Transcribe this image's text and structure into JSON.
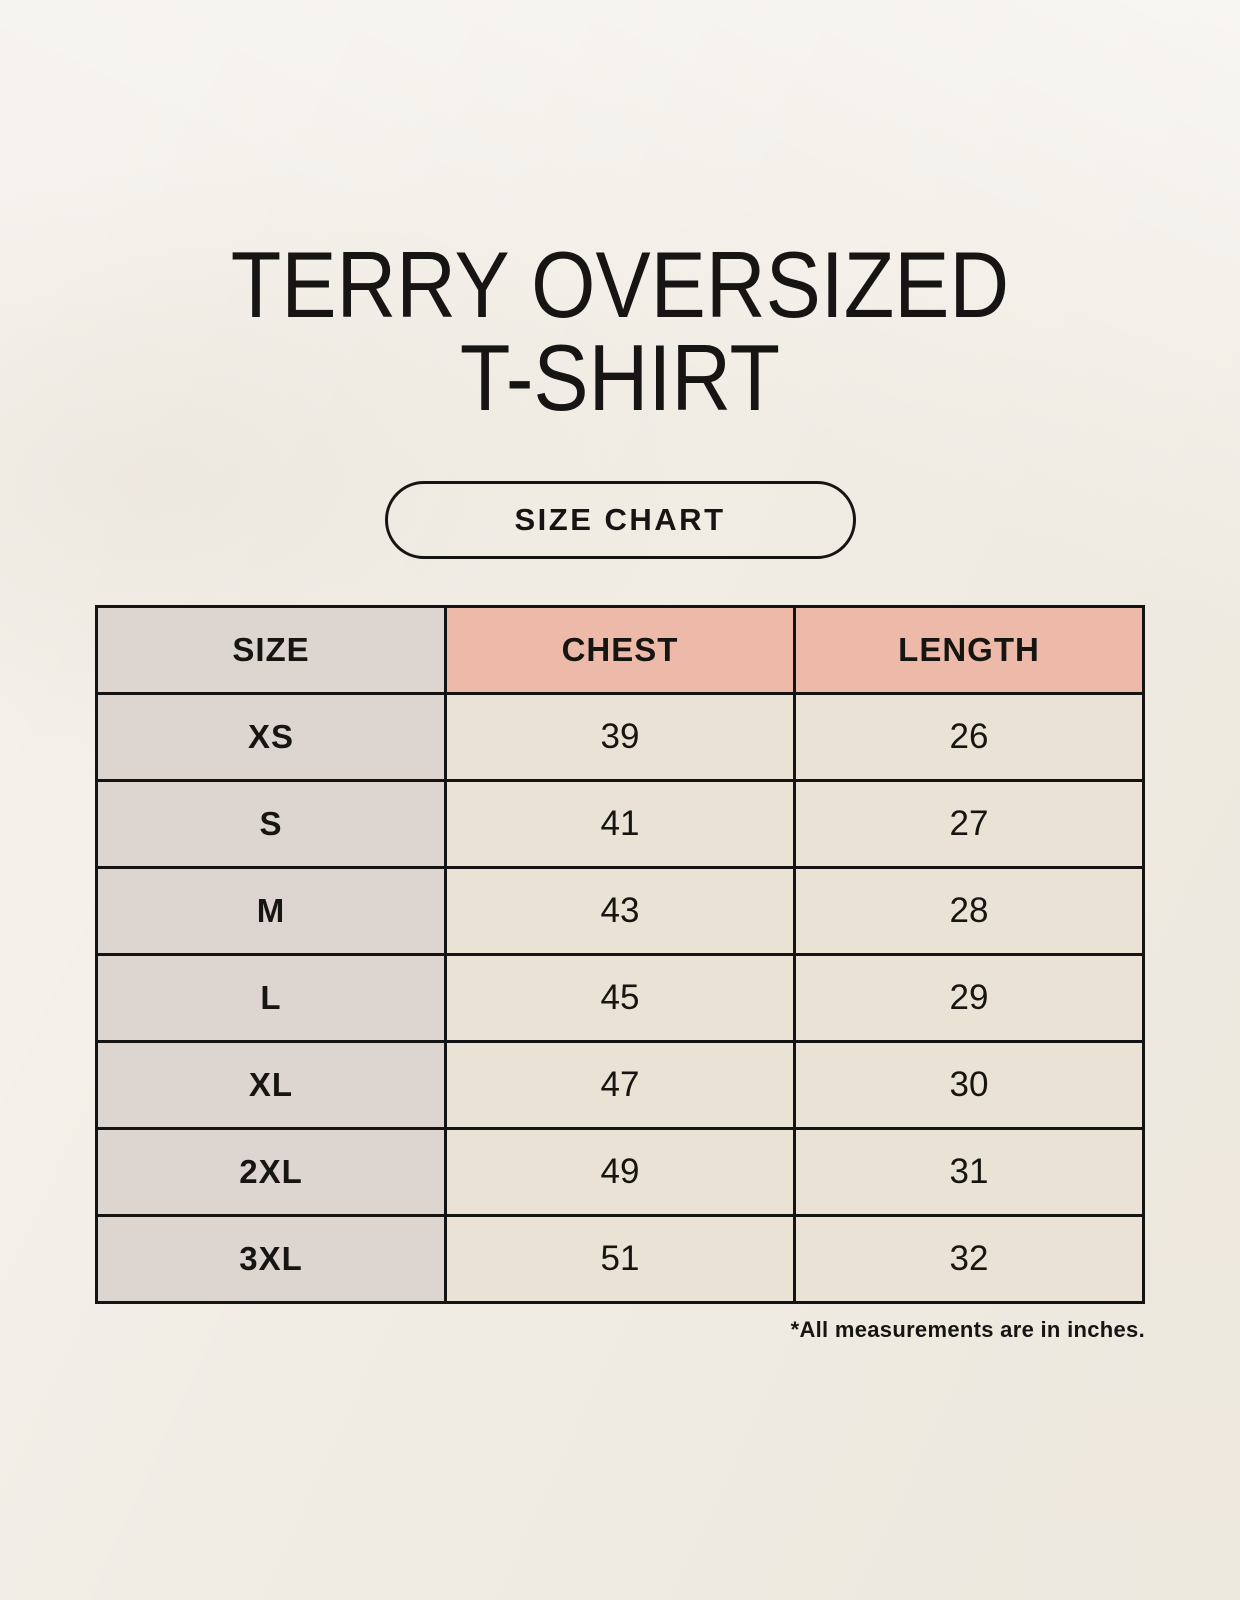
{
  "header": {
    "title_line1": "TERRY OVERSIZED",
    "title_line2": "T-SHIRT",
    "badge_label": "SIZE CHART"
  },
  "chart_data": {
    "type": "table",
    "title": "TERRY OVERSIZED T-SHIRT",
    "columns": [
      "SIZE",
      "CHEST",
      "LENGTH"
    ],
    "rows": [
      [
        "XS",
        39,
        26
      ],
      [
        "S",
        41,
        27
      ],
      [
        "M",
        43,
        28
      ],
      [
        "L",
        45,
        29
      ],
      [
        "XL",
        47,
        30
      ],
      [
        "2XL",
        49,
        31
      ],
      [
        "3XL",
        51,
        32
      ]
    ],
    "units": "inches",
    "note": "*All measurements are in inches."
  },
  "colors": {
    "background": "#f1ede5",
    "cell_gray": "#ddd6d0",
    "cell_accent_pink": "#edbaa9",
    "cell_beige": "#eae3d5",
    "border_black": "#141414",
    "text": "#161513"
  }
}
